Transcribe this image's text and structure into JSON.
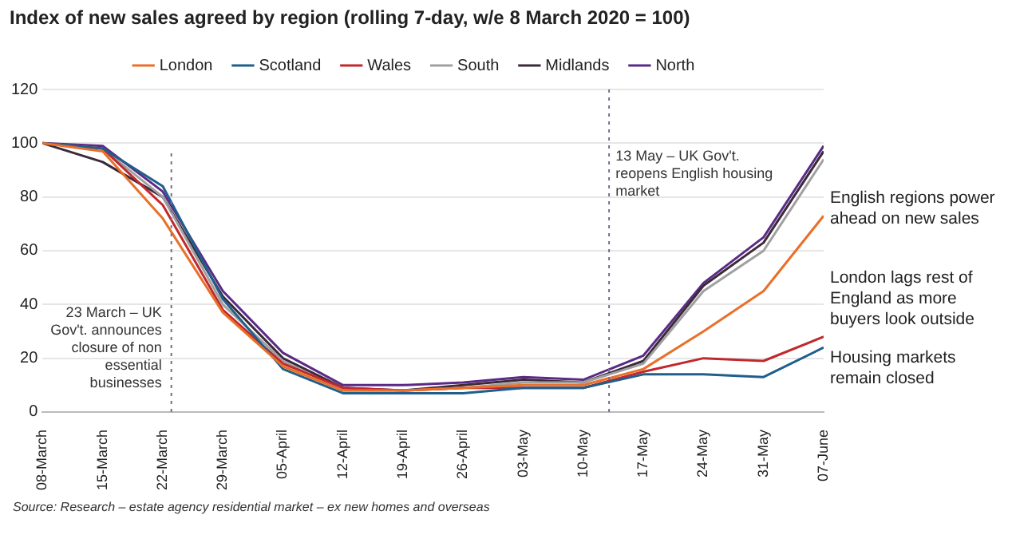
{
  "chart_data": {
    "type": "line",
    "title": "Index of new sales agreed by region (rolling 7-day, w/e 8 March 2020 = 100)",
    "x": [
      "--03-08",
      "--03-15",
      "--03-22",
      "--03-29",
      "--04-05",
      "--04-12",
      "--04-19",
      "--04-26",
      "--05-03",
      "--05-10",
      "--05-17",
      "--05-24",
      "--05-31",
      "--06-07"
    ],
    "series": [
      {
        "name": "London",
        "color": "#e8702a",
        "values": [
          100,
          97,
          72,
          37,
          17,
          8,
          8,
          9,
          10,
          10,
          16,
          30,
          45,
          73
        ]
      },
      {
        "name": "Scotland",
        "color": "#1f5f8b",
        "values": [
          100,
          98,
          84,
          42,
          16,
          7,
          7,
          7,
          9,
          9,
          14,
          14,
          13,
          24
        ]
      },
      {
        "name": "Wales",
        "color": "#c0282d",
        "values": [
          100,
          98,
          77,
          38,
          18,
          9,
          8,
          9,
          9,
          9,
          15,
          20,
          19,
          28
        ]
      },
      {
        "name": "South",
        "color": "#a0a0a0",
        "values": [
          100,
          98,
          80,
          40,
          19,
          8,
          8,
          9,
          11,
          11,
          18,
          45,
          60,
          94
        ]
      },
      {
        "name": "Midlands",
        "color": "#3a2a3a",
        "values": [
          100,
          93,
          80,
          43,
          20,
          9,
          8,
          10,
          12,
          11,
          19,
          47,
          63,
          97
        ]
      },
      {
        "name": "North",
        "color": "#5b2a86",
        "values": [
          100,
          99,
          82,
          45,
          22,
          10,
          10,
          11,
          13,
          12,
          21,
          48,
          65,
          99
        ]
      }
    ],
    "xlim": [
      "--03-08",
      "--06-07"
    ],
    "xticks": [
      {
        "value": "--03-08",
        "label": "08-March"
      },
      {
        "value": "--03-15",
        "label": "15-March"
      },
      {
        "value": "--03-22",
        "label": "22-March"
      },
      {
        "value": "--03-29",
        "label": "29-March"
      },
      {
        "value": "--04-05",
        "label": "05-April"
      },
      {
        "value": "--04-12",
        "label": "12-April"
      },
      {
        "value": "--04-19",
        "label": "19-April"
      },
      {
        "value": "--04-26",
        "label": "26-April"
      },
      {
        "value": "--05-03",
        "label": "03-May"
      },
      {
        "value": "--05-10",
        "label": "10-May"
      },
      {
        "value": "--05-17",
        "label": "17-May"
      },
      {
        "value": "--05-24",
        "label": "24-May"
      },
      {
        "value": "--05-31",
        "label": "31-May"
      },
      {
        "value": "--06-07",
        "label": "07-June"
      }
    ],
    "ylim": [
      0,
      120
    ],
    "yticks": [
      0,
      20,
      40,
      60,
      80,
      100,
      120
    ],
    "grid": "y",
    "legend": "top",
    "marker": "none",
    "line_style": "solid",
    "ref_lines": [
      {
        "axis": "x",
        "value": "--03-23",
        "label": "23 March – UK Gov't. announces closure of non essential businesses",
        "color": "#7a6a8a",
        "line_style": "dotted"
      },
      {
        "axis": "x",
        "value": "--05-13",
        "label": "13 May – UK Gov't. reopens English housing market",
        "color": "#7a6a8a",
        "line_style": "dotted"
      }
    ],
    "annotations": [
      "English regions power ahead on new sales",
      "London lags rest of England as more buyers look outside",
      "Housing markets remain closed",
      "Source: Research – estate agency residential market – ex new homes and overseas"
    ]
  }
}
